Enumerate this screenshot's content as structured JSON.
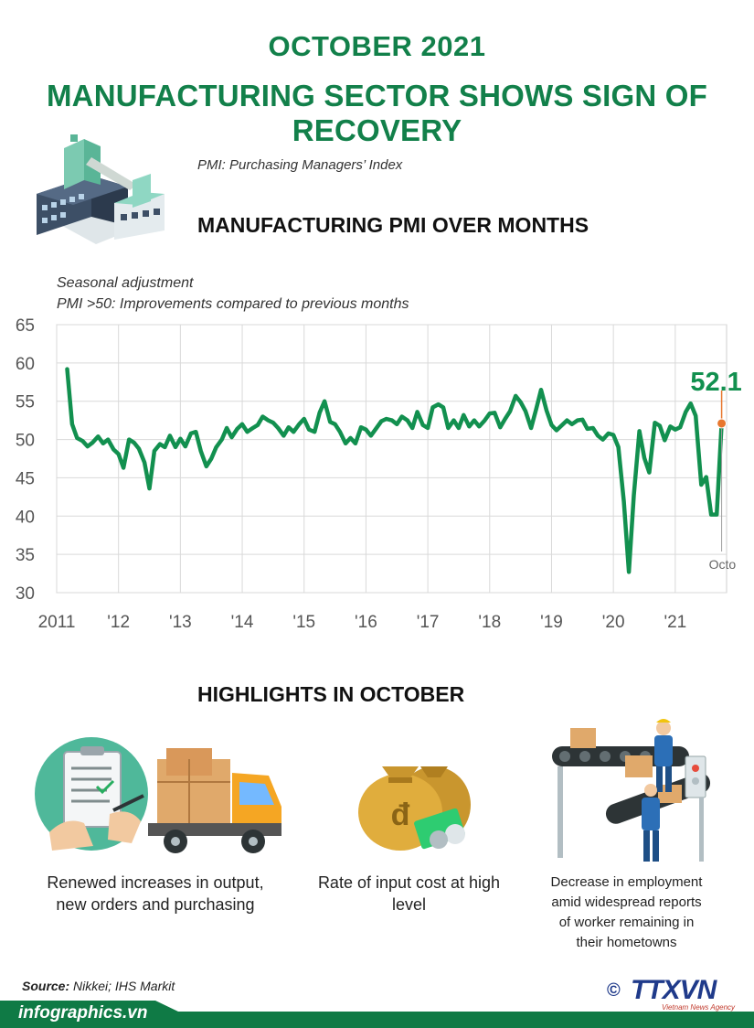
{
  "header": {
    "title_line1": "OCTOBER 2021",
    "title_line2": "MANUFACTURING SECTOR SHOWS SIGN OF RECOVERY",
    "pmi_definition": "PMI:  Purchasing Managers’ Index",
    "chart_heading": "MANUFACTURING PMI OVER MONTHS"
  },
  "chart_notes": {
    "line1": "Seasonal adjustment",
    "line2": "PMI >50: Improvements compared to previous months"
  },
  "chart_data": {
    "type": "line",
    "title": "MANUFACTURING PMI OVER MONTHS",
    "xlabel": "",
    "ylabel": "",
    "ylim": [
      30,
      65
    ],
    "yticks": [
      "65",
      "60",
      "55",
      "50",
      "45",
      "40",
      "35",
      "30"
    ],
    "xticks": [
      {
        "label": "2011",
        "year": 2011
      },
      {
        "label": "'12",
        "year": 2012
      },
      {
        "label": "'13",
        "year": 2013
      },
      {
        "label": "'14",
        "year": 2014
      },
      {
        "label": "'15",
        "year": 2015
      },
      {
        "label": "'16",
        "year": 2016
      },
      {
        "label": "'17",
        "year": 2017
      },
      {
        "label": "'18",
        "year": 2018
      },
      {
        "label": "'19",
        "year": 2019
      },
      {
        "label": "'20",
        "year": 2020
      },
      {
        "label": "'21",
        "year": 2021
      }
    ],
    "grid": true,
    "line_color": "#12904f",
    "marker_color": "#e8772e",
    "series": [
      {
        "values": [
          [
            2011.17,
            59.2
          ],
          [
            2011.25,
            52.0
          ],
          [
            2011.33,
            50.2
          ],
          [
            2011.42,
            49.8
          ],
          [
            2011.5,
            49.1
          ],
          [
            2011.58,
            49.6
          ],
          [
            2011.67,
            50.4
          ],
          [
            2011.75,
            49.5
          ],
          [
            2011.83,
            50.0
          ],
          [
            2011.92,
            48.7
          ],
          [
            2012.0,
            48.1
          ],
          [
            2012.08,
            46.3
          ],
          [
            2012.17,
            50.0
          ],
          [
            2012.25,
            49.6
          ],
          [
            2012.33,
            48.8
          ],
          [
            2012.42,
            47.0
          ],
          [
            2012.5,
            43.6
          ],
          [
            2012.58,
            48.5
          ],
          [
            2012.67,
            49.4
          ],
          [
            2012.75,
            49.0
          ],
          [
            2012.83,
            50.5
          ],
          [
            2012.92,
            49.0
          ],
          [
            2013.0,
            50.1
          ],
          [
            2013.08,
            49.1
          ],
          [
            2013.17,
            50.8
          ],
          [
            2013.25,
            51.0
          ],
          [
            2013.33,
            48.5
          ],
          [
            2013.42,
            46.5
          ],
          [
            2013.5,
            47.5
          ],
          [
            2013.58,
            49.0
          ],
          [
            2013.67,
            50.0
          ],
          [
            2013.75,
            51.5
          ],
          [
            2013.83,
            50.3
          ],
          [
            2013.92,
            51.4
          ],
          [
            2014.0,
            52.0
          ],
          [
            2014.08,
            51.0
          ],
          [
            2014.17,
            51.5
          ],
          [
            2014.25,
            51.9
          ],
          [
            2014.33,
            53.0
          ],
          [
            2014.42,
            52.5
          ],
          [
            2014.5,
            52.2
          ],
          [
            2014.58,
            51.5
          ],
          [
            2014.67,
            50.5
          ],
          [
            2014.75,
            51.6
          ],
          [
            2014.83,
            51.0
          ],
          [
            2014.92,
            52.0
          ],
          [
            2015.0,
            52.7
          ],
          [
            2015.08,
            51.3
          ],
          [
            2015.17,
            51.0
          ],
          [
            2015.25,
            53.5
          ],
          [
            2015.33,
            55.0
          ],
          [
            2015.42,
            52.3
          ],
          [
            2015.5,
            52.0
          ],
          [
            2015.58,
            51.0
          ],
          [
            2015.67,
            49.5
          ],
          [
            2015.75,
            50.2
          ],
          [
            2015.83,
            49.5
          ],
          [
            2015.92,
            51.6
          ],
          [
            2016.0,
            51.3
          ],
          [
            2016.08,
            50.5
          ],
          [
            2016.17,
            51.5
          ],
          [
            2016.25,
            52.4
          ],
          [
            2016.33,
            52.7
          ],
          [
            2016.42,
            52.5
          ],
          [
            2016.5,
            52.0
          ],
          [
            2016.58,
            53.0
          ],
          [
            2016.67,
            52.5
          ],
          [
            2016.75,
            51.5
          ],
          [
            2016.83,
            53.6
          ],
          [
            2016.92,
            51.9
          ],
          [
            2017.0,
            51.5
          ],
          [
            2017.08,
            54.2
          ],
          [
            2017.17,
            54.6
          ],
          [
            2017.25,
            54.2
          ],
          [
            2017.33,
            51.5
          ],
          [
            2017.42,
            52.5
          ],
          [
            2017.5,
            51.5
          ],
          [
            2017.58,
            53.2
          ],
          [
            2017.67,
            51.7
          ],
          [
            2017.75,
            52.5
          ],
          [
            2017.83,
            51.7
          ],
          [
            2017.92,
            52.5
          ],
          [
            2018.0,
            53.4
          ],
          [
            2018.08,
            53.5
          ],
          [
            2018.17,
            51.6
          ],
          [
            2018.25,
            52.7
          ],
          [
            2018.33,
            53.7
          ],
          [
            2018.42,
            55.7
          ],
          [
            2018.5,
            54.9
          ],
          [
            2018.58,
            53.7
          ],
          [
            2018.67,
            51.5
          ],
          [
            2018.75,
            53.9
          ],
          [
            2018.83,
            56.5
          ],
          [
            2018.92,
            53.8
          ],
          [
            2019.0,
            51.9
          ],
          [
            2019.08,
            51.2
          ],
          [
            2019.17,
            51.9
          ],
          [
            2019.25,
            52.5
          ],
          [
            2019.33,
            52.0
          ],
          [
            2019.42,
            52.5
          ],
          [
            2019.5,
            52.6
          ],
          [
            2019.58,
            51.4
          ],
          [
            2019.67,
            51.5
          ],
          [
            2019.75,
            50.5
          ],
          [
            2019.83,
            50.0
          ],
          [
            2019.92,
            50.8
          ],
          [
            2020.0,
            50.6
          ],
          [
            2020.08,
            49.0
          ],
          [
            2020.17,
            41.9
          ],
          [
            2020.25,
            32.7
          ],
          [
            2020.33,
            42.7
          ],
          [
            2020.42,
            51.1
          ],
          [
            2020.5,
            47.6
          ],
          [
            2020.58,
            45.7
          ],
          [
            2020.67,
            52.2
          ],
          [
            2020.75,
            51.8
          ],
          [
            2020.83,
            49.9
          ],
          [
            2020.92,
            51.7
          ],
          [
            2021.0,
            51.3
          ],
          [
            2021.08,
            51.6
          ],
          [
            2021.17,
            53.6
          ],
          [
            2021.25,
            54.7
          ],
          [
            2021.33,
            53.1
          ],
          [
            2021.42,
            44.1
          ],
          [
            2021.5,
            45.1
          ],
          [
            2021.58,
            40.2
          ],
          [
            2021.67,
            40.2
          ],
          [
            2021.75,
            52.1
          ]
        ]
      }
    ],
    "annotations": [
      {
        "label": "52.1",
        "x": 2021.75,
        "y": 52.1
      },
      {
        "label": "Octo",
        "x": 2021.75,
        "y": 30
      }
    ]
  },
  "highlights": {
    "heading": "HIGHLIGHTS IN OCTOBER",
    "item1_line1": "Renewed increases in output,",
    "item1_line2": "new orders and purchasing",
    "item2_line1": "Rate of input cost at high",
    "item2_line2": "level",
    "item3_line1": "Decrease  in employment",
    "item3_line2": "amid widespread reports",
    "item3_line3": "of worker remaining in",
    "item3_line4": "their hometowns",
    "coin_symbol": "đ"
  },
  "footer": {
    "source_label": "Source:",
    "source_text": " Nikkei; IHS Markit",
    "site": "infographics.vn",
    "copyright_symbol": "©",
    "agency_logo": "TTXVN",
    "agency_sub": "Vietnam News Agency"
  },
  "colors": {
    "title_green": "#12804a",
    "footer_green": "#0f7a45",
    "agency_blue": "#1f3a8a"
  }
}
